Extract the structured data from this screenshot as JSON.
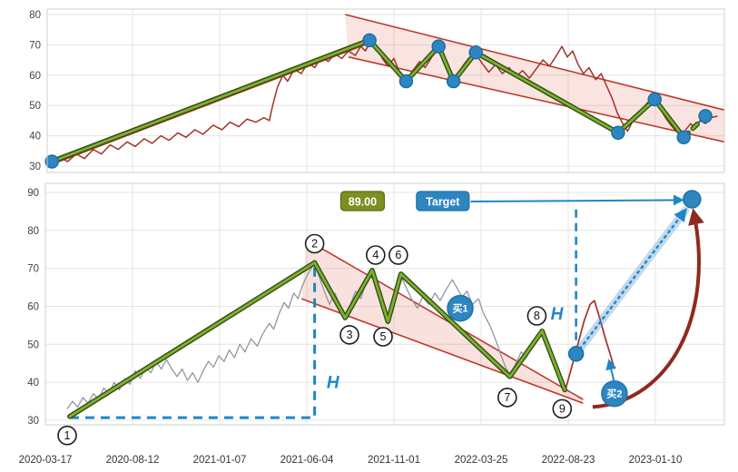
{
  "page": {
    "background": "#ffffff",
    "accent_blue": "#2e86c1",
    "accent_red": "#c0392b",
    "accent_green": "#7cb032",
    "dark_red_arrow": "#8f2a1e",
    "olive_label": "#7e8f20"
  },
  "chart_data": [
    {
      "id": "weekly_overview",
      "type": "line",
      "title": "",
      "xlabel": "",
      "ylabel": "",
      "ylim": [
        30,
        80
      ],
      "yticks": [
        30,
        40,
        50,
        60,
        70,
        80
      ],
      "grid": true,
      "price_color": "#a33127",
      "price": [
        [
          0.005,
          31
        ],
        [
          0.018,
          33
        ],
        [
          0.03,
          31.5
        ],
        [
          0.043,
          34
        ],
        [
          0.055,
          32.5
        ],
        [
          0.068,
          35.5
        ],
        [
          0.08,
          34
        ],
        [
          0.093,
          37
        ],
        [
          0.105,
          35.5
        ],
        [
          0.118,
          38
        ],
        [
          0.13,
          36.5
        ],
        [
          0.143,
          39
        ],
        [
          0.155,
          37.5
        ],
        [
          0.168,
          40
        ],
        [
          0.18,
          38.5
        ],
        [
          0.193,
          41
        ],
        [
          0.205,
          39.5
        ],
        [
          0.218,
          42
        ],
        [
          0.23,
          40.5
        ],
        [
          0.245,
          43.5
        ],
        [
          0.258,
          42
        ],
        [
          0.27,
          44.5
        ],
        [
          0.283,
          43
        ],
        [
          0.295,
          45.5
        ],
        [
          0.308,
          44.5
        ],
        [
          0.32,
          46
        ],
        [
          0.328,
          45
        ],
        [
          0.333,
          50
        ],
        [
          0.34,
          56
        ],
        [
          0.348,
          60
        ],
        [
          0.355,
          58
        ],
        [
          0.365,
          62
        ],
        [
          0.375,
          60.5
        ],
        [
          0.385,
          64
        ],
        [
          0.395,
          62.5
        ],
        [
          0.405,
          66
        ],
        [
          0.415,
          64.5
        ],
        [
          0.425,
          67
        ],
        [
          0.435,
          65.5
        ],
        [
          0.445,
          68
        ],
        [
          0.455,
          66.5
        ],
        [
          0.463,
          69.5
        ],
        [
          0.47,
          68
        ],
        [
          0.478,
          71.5
        ],
        [
          0.487,
          69
        ],
        [
          0.495,
          65.5
        ],
        [
          0.503,
          63
        ],
        [
          0.512,
          65.5
        ],
        [
          0.52,
          61
        ],
        [
          0.53,
          58.5
        ],
        [
          0.54,
          61.5
        ],
        [
          0.55,
          64.5
        ],
        [
          0.558,
          62.5
        ],
        [
          0.568,
          66
        ],
        [
          0.578,
          68.8
        ],
        [
          0.586,
          66
        ],
        [
          0.594,
          61
        ],
        [
          0.602,
          58.5
        ],
        [
          0.612,
          62.5
        ],
        [
          0.622,
          65.5
        ],
        [
          0.632,
          67.2
        ],
        [
          0.642,
          64
        ],
        [
          0.652,
          61
        ],
        [
          0.662,
          63.5
        ],
        [
          0.672,
          60.5
        ],
        [
          0.682,
          62.5
        ],
        [
          0.692,
          59.5
        ],
        [
          0.702,
          61.5
        ],
        [
          0.712,
          59
        ],
        [
          0.722,
          62
        ],
        [
          0.732,
          65
        ],
        [
          0.742,
          63
        ],
        [
          0.752,
          66.5
        ],
        [
          0.76,
          69.5
        ],
        [
          0.768,
          66
        ],
        [
          0.776,
          68
        ],
        [
          0.784,
          63.5
        ],
        [
          0.792,
          60.5
        ],
        [
          0.8,
          62.5
        ],
        [
          0.81,
          58.5
        ],
        [
          0.818,
          60.5
        ],
        [
          0.826,
          56.5
        ],
        [
          0.834,
          52.5
        ],
        [
          0.842,
          47.5
        ],
        [
          0.85,
          44
        ],
        [
          0.857,
          41.5
        ],
        [
          0.865,
          45
        ],
        [
          0.873,
          47.5
        ],
        [
          0.881,
          49.5
        ],
        [
          0.889,
          51.5
        ],
        [
          0.897,
          52
        ],
        [
          0.905,
          49
        ],
        [
          0.913,
          46
        ],
        [
          0.921,
          43.5
        ],
        [
          0.929,
          41.5
        ],
        [
          0.937,
          40
        ],
        [
          0.943,
          42
        ],
        [
          0.95,
          44
        ],
        [
          0.957,
          42.5
        ],
        [
          0.964,
          45
        ],
        [
          0.972,
          44
        ],
        [
          0.98,
          46
        ],
        [
          0.99,
          46.5
        ]
      ],
      "uptrend_lines": [
        [
          [
            0.007,
            30.6
          ],
          [
            0.476,
            70.6
          ]
        ],
        [
          [
            0.007,
            32.2
          ],
          [
            0.476,
            72.2
          ]
        ]
      ],
      "channel": {
        "upper": [
          [
            0.44,
            80
          ],
          [
            1.0,
            48.5
          ]
        ],
        "lower": [
          [
            0.445,
            66
          ],
          [
            1.0,
            38
          ]
        ],
        "fill": "rgba(226,106,90,0.18)",
        "line_color": "#c0392b"
      },
      "zigzag": [
        [
          0.007,
          31.5
        ],
        [
          0.476,
          71.5
        ],
        [
          0.53,
          58
        ],
        [
          0.578,
          69.5
        ],
        [
          0.6,
          58
        ],
        [
          0.633,
          67.5
        ],
        [
          0.843,
          41
        ],
        [
          0.897,
          52
        ],
        [
          0.94,
          39.5
        ]
      ],
      "zigzag_forecast": [
        [
          0.94,
          39.5
        ],
        [
          0.972,
          46.5
        ]
      ],
      "zigzag_color": "#7cb032",
      "zigzag_edge": "#2f4d10",
      "pivot_dots": {
        "color": "#2e86c1",
        "edge": "#1b6fa8",
        "r": 7,
        "points": [
          [
            0.007,
            31.5
          ],
          [
            0.476,
            71.5
          ],
          [
            0.53,
            58
          ],
          [
            0.578,
            69.5
          ],
          [
            0.6,
            58
          ],
          [
            0.633,
            67.5
          ],
          [
            0.843,
            41
          ],
          [
            0.897,
            52
          ],
          [
            0.94,
            39.5
          ],
          [
            0.972,
            46.5
          ]
        ]
      }
    },
    {
      "id": "daily_detail",
      "type": "line",
      "title": "",
      "xlabel": "",
      "ylabel": "",
      "ylim": [
        30,
        90
      ],
      "yticks": [
        30,
        40,
        50,
        60,
        70,
        80,
        90
      ],
      "xtick_labels": [
        "2020-03-17",
        "2020-08-12",
        "2021-01-07",
        "2021-06-04",
        "2021-11-01",
        "2022-03-25",
        "2022-08-23",
        "2023-01-10"
      ],
      "grid": true,
      "price_color": "#9097a0",
      "price": [
        [
          0.25,
          33
        ],
        [
          0.31,
          35
        ],
        [
          0.37,
          33.5
        ],
        [
          0.43,
          36
        ],
        [
          0.49,
          34.5
        ],
        [
          0.55,
          37
        ],
        [
          0.61,
          35.5
        ],
        [
          0.67,
          38.5
        ],
        [
          0.73,
          37
        ],
        [
          0.79,
          40
        ],
        [
          0.85,
          38
        ],
        [
          0.91,
          41
        ],
        [
          0.97,
          39.5
        ],
        [
          1.03,
          43
        ],
        [
          1.09,
          41
        ],
        [
          1.15,
          44
        ],
        [
          1.21,
          42.5
        ],
        [
          1.27,
          45.5
        ],
        [
          1.33,
          43.5
        ],
        [
          1.39,
          46
        ],
        [
          1.45,
          43.5
        ],
        [
          1.51,
          41.5
        ],
        [
          1.57,
          43.5
        ],
        [
          1.63,
          40.5
        ],
        [
          1.69,
          42.5
        ],
        [
          1.75,
          40
        ],
        [
          1.81,
          43
        ],
        [
          1.87,
          45.5
        ],
        [
          1.93,
          44
        ],
        [
          1.99,
          47
        ],
        [
          2.05,
          45.5
        ],
        [
          2.11,
          48.5
        ],
        [
          2.17,
          46.5
        ],
        [
          2.23,
          50
        ],
        [
          2.29,
          48
        ],
        [
          2.36,
          51.5
        ],
        [
          2.43,
          49.5
        ],
        [
          2.5,
          53
        ],
        [
          2.57,
          55.5
        ],
        [
          2.62,
          54
        ],
        [
          2.68,
          58
        ],
        [
          2.74,
          61
        ],
        [
          2.79,
          59.5
        ],
        [
          2.85,
          63.5
        ],
        [
          2.9,
          62
        ],
        [
          2.95,
          65.5
        ],
        [
          3.0,
          68
        ],
        [
          3.05,
          70
        ],
        [
          3.09,
          71.5
        ],
        [
          3.14,
          68
        ],
        [
          3.2,
          64
        ],
        [
          3.26,
          60.5
        ],
        [
          3.32,
          63.5
        ],
        [
          3.38,
          60.5
        ],
        [
          3.44,
          57.5
        ],
        [
          3.5,
          60.5
        ],
        [
          3.56,
          64
        ],
        [
          3.62,
          62
        ],
        [
          3.68,
          66.5
        ],
        [
          3.73,
          69
        ],
        [
          3.78,
          67
        ],
        [
          3.84,
          63
        ],
        [
          3.89,
          59
        ],
        [
          3.93,
          56.5
        ],
        [
          3.99,
          60
        ],
        [
          4.04,
          64.5
        ],
        [
          4.08,
          68
        ],
        [
          4.14,
          65
        ],
        [
          4.2,
          62
        ],
        [
          4.27,
          59.5
        ],
        [
          4.33,
          62.5
        ],
        [
          4.4,
          60.5
        ],
        [
          4.47,
          63.5
        ],
        [
          4.53,
          61.5
        ],
        [
          4.6,
          64.5
        ],
        [
          4.67,
          67
        ],
        [
          4.72,
          65
        ],
        [
          4.78,
          62.5
        ],
        [
          4.84,
          64
        ],
        [
          4.9,
          60.5
        ],
        [
          4.97,
          62
        ],
        [
          5.03,
          58
        ],
        [
          5.1,
          55
        ],
        [
          5.17,
          51
        ],
        [
          5.23,
          47
        ],
        [
          5.28,
          44
        ],
        [
          5.33,
          41.8
        ],
        [
          5.4,
          45
        ],
        [
          5.46,
          48
        ],
        [
          5.52,
          46.5
        ],
        [
          5.58,
          50
        ],
        [
          5.64,
          52.5
        ],
        [
          5.7,
          53.5
        ],
        [
          5.76,
          50
        ],
        [
          5.82,
          46
        ],
        [
          5.88,
          42.5
        ],
        [
          5.93,
          40
        ],
        [
          5.97,
          38.2
        ]
      ],
      "breakout_price_color": "#a33127",
      "breakout_price": [
        [
          5.97,
          38.2
        ],
        [
          6.04,
          44
        ],
        [
          6.11,
          50
        ],
        [
          6.18,
          56
        ],
        [
          6.25,
          60.5
        ],
        [
          6.3,
          61.5
        ],
        [
          6.36,
          57
        ],
        [
          6.42,
          52
        ],
        [
          6.48,
          47.5
        ],
        [
          6.53,
          43.5
        ]
      ],
      "uptrend": {
        "points": [
          [
            0.28,
            31
          ],
          [
            3.09,
            71.5
          ]
        ],
        "color": "#d0342c",
        "core": "#1a1a1a"
      },
      "channel": {
        "upper": [
          [
            3.0,
            77.5
          ],
          [
            6.17,
            35.5
          ]
        ],
        "lower": [
          [
            2.94,
            62
          ],
          [
            6.17,
            34.5
          ]
        ],
        "fill": "rgba(226,106,90,0.2)",
        "line_color": "#c0392b"
      },
      "zigzag": [
        [
          0.28,
          31
        ],
        [
          3.09,
          71.5
        ],
        [
          3.44,
          57
        ],
        [
          3.75,
          69.5
        ],
        [
          3.93,
          56
        ],
        [
          4.08,
          68.5
        ],
        [
          5.33,
          41.5
        ],
        [
          5.7,
          53.5
        ],
        [
          5.96,
          38
        ]
      ],
      "zigzag_color": "#7cb032",
      "zigzag_edge": "#2f4d10",
      "annotations": {
        "blue": "#1e86c8",
        "numbered_points": [
          {
            "label": "1",
            "x": 0.25,
            "v": 26
          },
          {
            "label": "2",
            "x": 3.09,
            "v": 76.5
          },
          {
            "label": "3",
            "x": 3.49,
            "v": 52.5
          },
          {
            "label": "4",
            "x": 3.79,
            "v": 73.5
          },
          {
            "label": "5",
            "x": 3.875,
            "v": 52
          },
          {
            "label": "6",
            "x": 4.05,
            "v": 73.5
          },
          {
            "label": "7",
            "x": 5.3,
            "v": 36
          },
          {
            "label": "8",
            "x": 5.64,
            "v": 57.5
          },
          {
            "label": "9",
            "x": 5.93,
            "v": 33
          }
        ],
        "buy_markers": [
          {
            "label": "买1",
            "x": 4.76,
            "v": 59.5
          },
          {
            "label": "买2",
            "x": 6.53,
            "v": 37
          }
        ],
        "h_labels": [
          {
            "text": "H",
            "x": 3.3,
            "v": 38.5
          },
          {
            "text": "H",
            "x": 5.87,
            "v": 56.5
          }
        ],
        "measure_path": [
          [
            0.28,
            30.7
          ],
          [
            3.09,
            30.7
          ],
          [
            3.09,
            71.5
          ]
        ],
        "projection_dash": [
          [
            6.09,
            47.5
          ],
          [
            6.09,
            86.2
          ]
        ],
        "breakout_dot": {
          "x": 6.09,
          "v": 47.5
        },
        "target_dot": {
          "x": 7.42,
          "v": 88.2
        },
        "projection_arrow": {
          "from": [
            6.09,
            47.5
          ],
          "to": [
            7.34,
            85.2
          ]
        },
        "buy2_arrow": {
          "from": [
            6.53,
            39.8
          ],
          "to": [
            6.47,
            45.5
          ]
        },
        "curved_arrow": {
          "start": [
            6.28,
            33.5
          ],
          "c1": [
            7.18,
            35
          ],
          "c2": [
            7.68,
            58
          ],
          "end": [
            7.44,
            84.8
          ]
        },
        "price_label": {
          "text": "89.00",
          "x": 3.64,
          "v": 87.6,
          "bg": "#7e8f20",
          "border": "#5c691a"
        },
        "target_label": {
          "text": "Target",
          "x": 4.56,
          "v": 87.6,
          "bg": "#2e86c1",
          "border": "#1b6fa8"
        },
        "target_arrow": {
          "from": [
            4.88,
            87.6
          ],
          "to": [
            7.3,
            88.0
          ]
        }
      }
    }
  ]
}
